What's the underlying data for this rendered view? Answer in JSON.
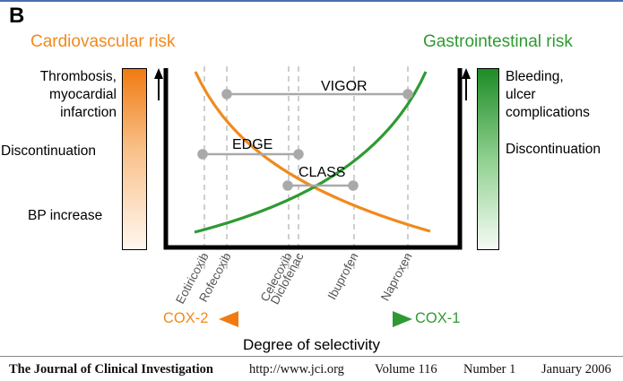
{
  "panel_label": "B",
  "left_heading": "Cardiovascular risk",
  "right_heading": "Gastrointestinal risk",
  "left_scale": {
    "top": [
      "Thrombosis,",
      "myocardial",
      "infarction"
    ],
    "middle": "Discontinuation",
    "bottom": "BP increase"
  },
  "right_scale": {
    "top": [
      "Bleeding,",
      "ulcer",
      "complications"
    ],
    "middle": "Discontinuation"
  },
  "drugs": [
    "Eotiricoxib",
    "Rofecoxib",
    "Celecoxib",
    "Diclofenac",
    "Ibuprofen",
    "Naproxen"
  ],
  "trials": {
    "vigor": "VIGOR",
    "edge": "EDGE",
    "class": "CLASS"
  },
  "axis": {
    "left_end": "COX-2",
    "right_end": "COX-1",
    "label": "Degree of selectivity"
  },
  "colors": {
    "cardiovascular": "#f08a1e",
    "gastrointestinal": "#2f9a33",
    "trial_line": "#a9a9a9"
  },
  "footer": {
    "journal": "The Journal of Clinical Investigation",
    "url": "http://www.jci.org",
    "volume": "Volume 116",
    "number": "Number 1",
    "date": "January 2006"
  }
}
